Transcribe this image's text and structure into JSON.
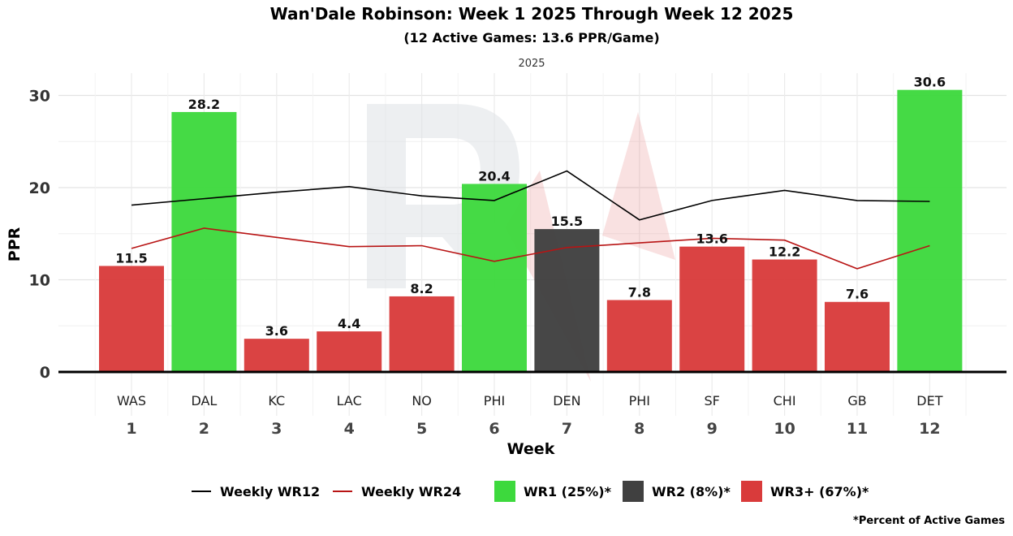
{
  "chart_data": {
    "type": "bar",
    "title": "Wan'Dale Robinson: Week 1 2025 Through Week 12 2025",
    "subtitle": "(12 Active Games: 13.6 PPR/Game)",
    "facet_label": "2025",
    "xlabel": "Week",
    "ylabel": "PPR",
    "ylim": [
      0,
      32
    ],
    "yticks": [
      0,
      10,
      20,
      30
    ],
    "weeks": [
      "1",
      "2",
      "3",
      "4",
      "5",
      "6",
      "7",
      "8",
      "9",
      "10",
      "11",
      "12"
    ],
    "opponents": [
      "WAS",
      "DAL",
      "KC",
      "LAC",
      "NO",
      "PHI",
      "DEN",
      "PHI",
      "SF",
      "CHI",
      "GB",
      "DET"
    ],
    "values": [
      11.5,
      28.2,
      3.6,
      4.4,
      8.2,
      20.4,
      15.5,
      7.8,
      13.6,
      12.2,
      7.6,
      30.6
    ],
    "value_labels": [
      "11.5",
      "28.2",
      "3.6",
      "4.4",
      "8.2",
      "20.4",
      "15.5",
      "7.8",
      "13.6",
      "12.2",
      "7.6",
      "30.6"
    ],
    "tiers": [
      "WR3+",
      "WR1",
      "WR3+",
      "WR3+",
      "WR3+",
      "WR1",
      "WR2",
      "WR3+",
      "WR3+",
      "WR3+",
      "WR3+",
      "WR1"
    ],
    "lines": [
      {
        "name": "Weekly WR12",
        "color": "#000000",
        "values": [
          18.1,
          18.8,
          19.5,
          20.1,
          19.1,
          18.6,
          21.8,
          16.5,
          18.6,
          19.7,
          18.6,
          18.5
        ]
      },
      {
        "name": "Weekly WR24",
        "color": "#b81414",
        "values": [
          13.4,
          15.6,
          14.6,
          13.6,
          13.7,
          12.0,
          13.5,
          14.0,
          14.5,
          14.3,
          11.2,
          13.7
        ]
      }
    ],
    "legend": [
      {
        "kind": "line",
        "label": "Weekly WR12",
        "color": "#000000"
      },
      {
        "kind": "line",
        "label": "Weekly WR24",
        "color": "#b81414"
      },
      {
        "kind": "box",
        "label": "WR1 (25%)*",
        "color": "#3dd93d"
      },
      {
        "kind": "box",
        "label": "WR2 (8%)*",
        "color": "#404040"
      },
      {
        "kind": "box",
        "label": "WR3+ (67%)*",
        "color": "#d93b3b"
      }
    ],
    "tier_colors": {
      "WR1": "#3dd93d",
      "WR2": "#404040",
      "WR3+": "#d93b3b"
    },
    "legend_position": "bottom",
    "footnote": "*Percent of Active Games"
  }
}
